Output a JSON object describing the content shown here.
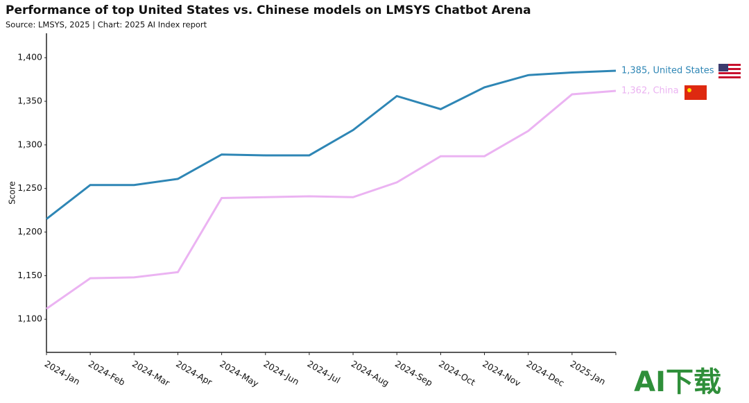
{
  "chart_data": {
    "type": "line",
    "title": "Performance of top United States vs. Chinese models on LMSYS Chatbot Arena",
    "subtitle": "Source: LMSYS, 2025 | Chart: 2025 AI Index report",
    "y_label": "Score",
    "categories": [
      "2024-Jan",
      "2024-Feb",
      "2024-Mar",
      "2024-Apr",
      "2024-May",
      "2024-Jun",
      "2024-Jul",
      "2024-Aug",
      "2024-Sep",
      "2024-Oct",
      "2024-Nov",
      "2024-Dec",
      "2025-Jan",
      null
    ],
    "series": [
      {
        "name": "United States",
        "color": "#2e86b5",
        "end_label": "1,385, United States",
        "values": [
          1215,
          1254,
          1254,
          1261,
          1289,
          1288,
          1288,
          1317,
          1356,
          1341,
          1366,
          1380,
          1383,
          1385
        ]
      },
      {
        "name": "China",
        "color": "#ebb3f2",
        "end_label": "1,362, China",
        "values": [
          1112,
          1147,
          1148,
          1154,
          1239,
          1240,
          1241,
          1240,
          1257,
          1287,
          1287,
          1316,
          1358,
          1362
        ]
      }
    ],
    "ylim": [
      1062,
      1428
    ],
    "yticks": [
      {
        "value": 1100,
        "label": "1,100"
      },
      {
        "value": 1150,
        "label": "1,150"
      },
      {
        "value": 1200,
        "label": "1,200"
      },
      {
        "value": 1250,
        "label": "1,250"
      },
      {
        "value": 1300,
        "label": "1,300"
      },
      {
        "value": 1350,
        "label": "1,350"
      },
      {
        "value": 1400,
        "label": "1,400"
      }
    ],
    "grid": false,
    "watermark": "AI下载"
  }
}
